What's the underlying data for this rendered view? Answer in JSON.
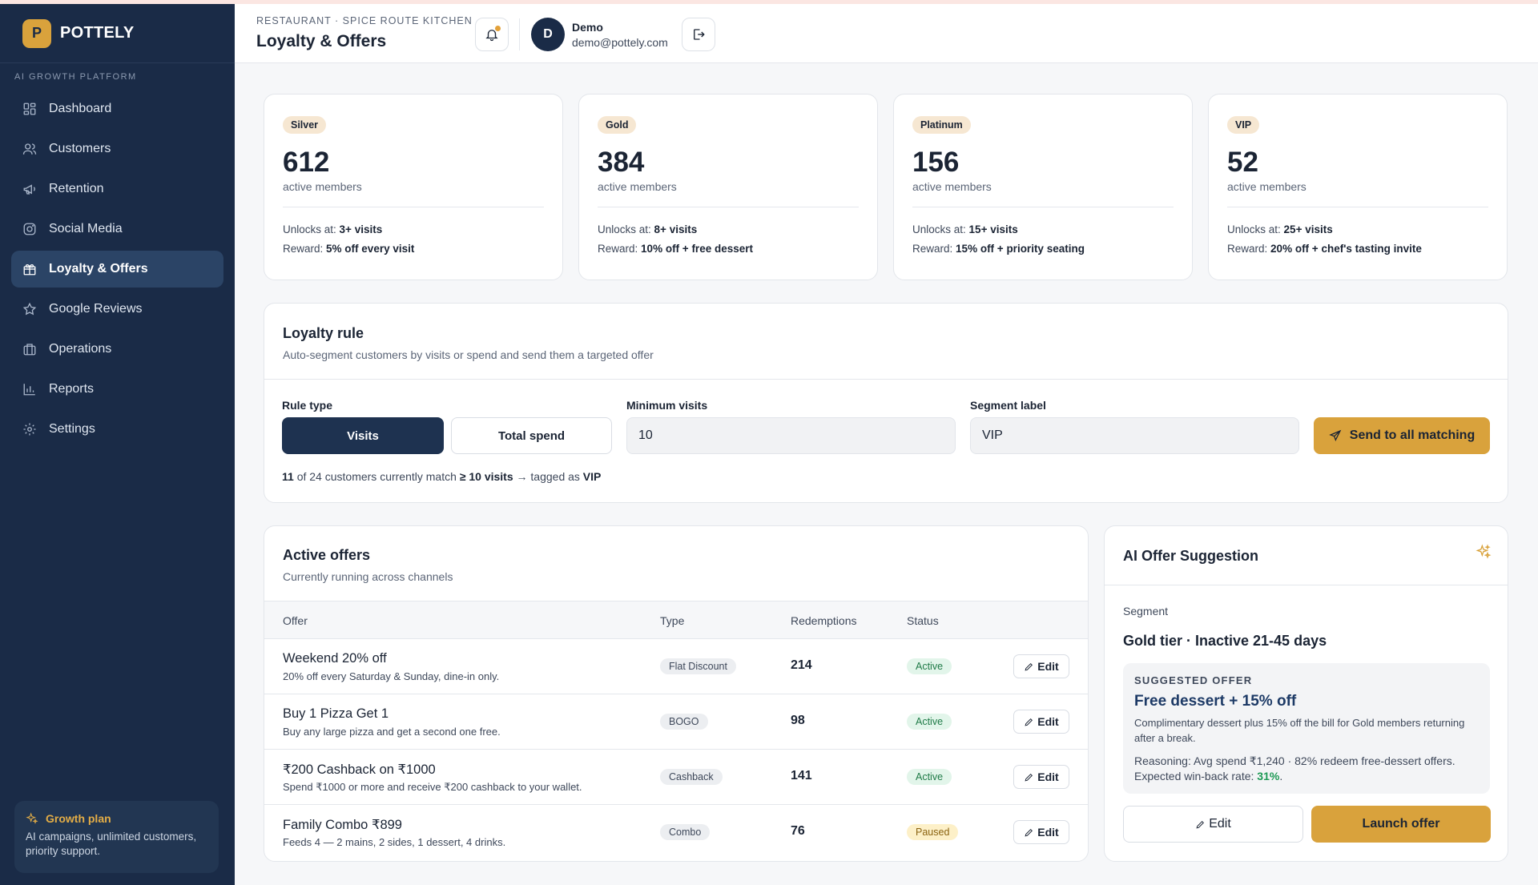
{
  "app": {
    "brand_initial": "P",
    "brand_name": "POTTELY",
    "section_label": "AI GROWTH PLATFORM"
  },
  "sidebar": {
    "items": [
      {
        "label": "Dashboard",
        "icon": "dashboard-icon"
      },
      {
        "label": "Customers",
        "icon": "users-icon"
      },
      {
        "label": "Retention",
        "icon": "megaphone-icon"
      },
      {
        "label": "Social Media",
        "icon": "instagram-icon"
      },
      {
        "label": "Loyalty & Offers",
        "icon": "gift-icon",
        "active": true
      },
      {
        "label": "Google Reviews",
        "icon": "star-icon"
      },
      {
        "label": "Operations",
        "icon": "briefcase-icon"
      },
      {
        "label": "Reports",
        "icon": "bar-chart-icon"
      },
      {
        "label": "Settings",
        "icon": "gear-icon"
      }
    ],
    "plan": {
      "title": "Growth plan",
      "text": "AI campaigns, unlimited customers, priority support."
    }
  },
  "header": {
    "breadcrumb": "RESTAURANT · SPICE ROUTE KITCHEN",
    "title": "Loyalty & Offers",
    "user": {
      "initial": "D",
      "name": "Demo",
      "email": "demo@pottely.com"
    }
  },
  "tiers": [
    {
      "badge": "Silver",
      "count": "612",
      "sub": "active members",
      "unlock_label": "Unlocks at:",
      "unlock": "3+ visits",
      "reward_label": "Reward:",
      "reward": "5% off every visit"
    },
    {
      "badge": "Gold",
      "count": "384",
      "sub": "active members",
      "unlock_label": "Unlocks at:",
      "unlock": "8+ visits",
      "reward_label": "Reward:",
      "reward": "10% off + free dessert"
    },
    {
      "badge": "Platinum",
      "count": "156",
      "sub": "active members",
      "unlock_label": "Unlocks at:",
      "unlock": "15+ visits",
      "reward_label": "Reward:",
      "reward": "15% off + priority seating"
    },
    {
      "badge": "VIP",
      "count": "52",
      "sub": "active members",
      "unlock_label": "Unlocks at:",
      "unlock": "25+ visits",
      "reward_label": "Reward:",
      "reward": "20% off + chef's tasting invite"
    }
  ],
  "rule": {
    "title": "Loyalty rule",
    "subtitle": "Auto-segment customers by visits or spend and send them a targeted offer",
    "rule_type_label": "Rule type",
    "option_visits": "Visits",
    "option_spend": "Total spend",
    "min_visits_label": "Minimum visits",
    "min_visits_value": "10",
    "segment_label": "Segment label",
    "segment_value": "VIP",
    "send_button": "Send to all matching",
    "match": {
      "count": "11",
      "mid": " of 24 customers currently match ",
      "threshold": "≥ 10 visits",
      "arrow": " → tagged as ",
      "tag": "VIP"
    }
  },
  "offers": {
    "title": "Active offers",
    "subtitle": "Currently running across channels",
    "columns": {
      "offer": "Offer",
      "type": "Type",
      "redemptions": "Redemptions",
      "status": "Status"
    },
    "edit_label": "Edit",
    "rows": [
      {
        "name": "Weekend 20% off",
        "desc": "20% off every Saturday & Sunday, dine-in only.",
        "type": "Flat Discount",
        "redemptions": "214",
        "status": "Active"
      },
      {
        "name": "Buy 1 Pizza Get 1",
        "desc": "Buy any large pizza and get a second one free.",
        "type": "BOGO",
        "redemptions": "98",
        "status": "Active"
      },
      {
        "name": "₹200 Cashback on ₹1000",
        "desc": "Spend ₹1000 or more and receive ₹200 cashback to your wallet.",
        "type": "Cashback",
        "redemptions": "141",
        "status": "Active"
      },
      {
        "name": "Family Combo ₹899",
        "desc": "Feeds 4 — 2 mains, 2 sides, 1 dessert, 4 drinks.",
        "type": "Combo",
        "redemptions": "76",
        "status": "Paused"
      }
    ]
  },
  "ai": {
    "title": "AI Offer Suggestion",
    "segment_label": "Segment",
    "segment_value": "Gold tier · Inactive 21-45 days",
    "box_label": "SUGGESTED OFFER",
    "box_title": "Free dessert + 15% off",
    "box_desc": "Complimentary dessert plus 15% off the bill for Gold members returning after a break.",
    "reason": "Reasoning: Avg spend ₹1,240 · 82% redeem free-dessert offers. Expected win-back rate: ",
    "rate": "31%",
    "rate_suffix": ".",
    "edit_button": "Edit",
    "launch_button": "Launch offer"
  },
  "colors": {
    "sidebar_bg": "#1a2b47",
    "accent": "#d9a23c",
    "active_status": "#1e7a46",
    "paused_status": "#8a6210"
  }
}
